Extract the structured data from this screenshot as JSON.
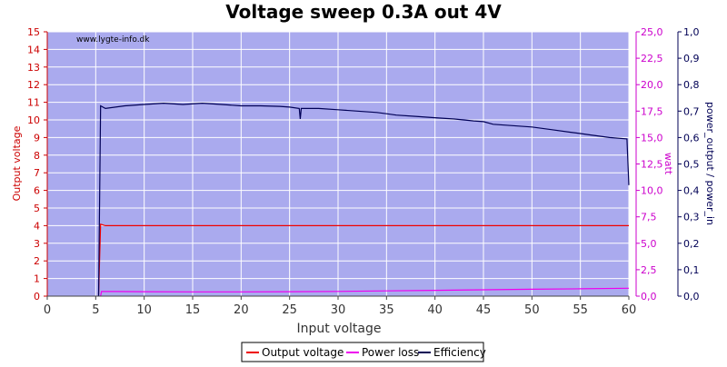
{
  "chart_data": {
    "type": "line",
    "title": "Voltage sweep 0.3A out 4V",
    "watermark": "www.lygte-info.dk",
    "xlabel": "Input voltage",
    "ylabel_left": "Output voltage",
    "ylabel_right1": "watt",
    "ylabel_right2": "power_output / power_in",
    "xlim": [
      0,
      60
    ],
    "ylim_left": [
      0,
      15
    ],
    "ylim_right1": [
      0,
      25
    ],
    "ylim_right2": [
      0,
      1
    ],
    "x_ticks": [
      "0",
      "5",
      "10",
      "15",
      "20",
      "25",
      "30",
      "35",
      "40",
      "45",
      "50",
      "55",
      "60"
    ],
    "y_left_ticks": [
      "0",
      "1",
      "2",
      "3",
      "4",
      "5",
      "6",
      "7",
      "8",
      "9",
      "10",
      "11",
      "12",
      "13",
      "14",
      "15"
    ],
    "y_right1_ticks": [
      "0,0",
      "2,5",
      "5,0",
      "7,5",
      "10,0",
      "12,5",
      "15,0",
      "17,5",
      "20,0",
      "22,5",
      "25,0"
    ],
    "y_right2_ticks": [
      "0,0",
      "0,1",
      "0,2",
      "0,3",
      "0,4",
      "0,5",
      "0,6",
      "0,7",
      "0,8",
      "0,9",
      "1,0"
    ],
    "grid": true,
    "legend_position": "bottom-center",
    "colors": {
      "plot_bg": "#aaaaee",
      "grid": "#ffffff",
      "output_voltage": "#ee0000",
      "power_loss": "#ee00ee",
      "efficiency": "#000055",
      "axis_left": "#cc0000",
      "axis_right1": "#cc00cc",
      "axis_right2": "#000055",
      "axis_bottom": "#444444"
    },
    "series": [
      {
        "name": "Output voltage",
        "axis": "left",
        "points": [
          [
            5.3,
            0.1
          ],
          [
            5.5,
            4.08
          ],
          [
            6,
            4.0
          ],
          [
            10,
            4.0
          ],
          [
            20,
            4.0
          ],
          [
            30,
            4.0
          ],
          [
            40,
            4.0
          ],
          [
            50,
            4.0
          ],
          [
            60,
            4.0
          ]
        ]
      },
      {
        "name": "Power loss",
        "axis": "right1",
        "points": [
          [
            5.5,
            0.0
          ],
          [
            5.6,
            0.45
          ],
          [
            10,
            0.42
          ],
          [
            15,
            0.4
          ],
          [
            20,
            0.4
          ],
          [
            25,
            0.42
          ],
          [
            30,
            0.45
          ],
          [
            35,
            0.5
          ],
          [
            40,
            0.55
          ],
          [
            45,
            0.6
          ],
          [
            50,
            0.65
          ],
          [
            55,
            0.7
          ],
          [
            60,
            0.75
          ]
        ]
      },
      {
        "name": "Efficiency",
        "axis": "right2",
        "points": [
          [
            5.3,
            0.0
          ],
          [
            5.5,
            0.72
          ],
          [
            6,
            0.71
          ],
          [
            8,
            0.72
          ],
          [
            10,
            0.725
          ],
          [
            12,
            0.73
          ],
          [
            14,
            0.725
          ],
          [
            16,
            0.73
          ],
          [
            18,
            0.725
          ],
          [
            20,
            0.72
          ],
          [
            22,
            0.72
          ],
          [
            24,
            0.718
          ],
          [
            25,
            0.715
          ],
          [
            26,
            0.71
          ],
          [
            26.1,
            0.67
          ],
          [
            26.2,
            0.71
          ],
          [
            28,
            0.71
          ],
          [
            30,
            0.705
          ],
          [
            32,
            0.7
          ],
          [
            34,
            0.695
          ],
          [
            35,
            0.69
          ],
          [
            36,
            0.685
          ],
          [
            38,
            0.68
          ],
          [
            40,
            0.675
          ],
          [
            42,
            0.67
          ],
          [
            44,
            0.663
          ],
          [
            45,
            0.66
          ],
          [
            46,
            0.65
          ],
          [
            48,
            0.645
          ],
          [
            50,
            0.64
          ],
          [
            52,
            0.63
          ],
          [
            54,
            0.62
          ],
          [
            55,
            0.615
          ],
          [
            56,
            0.61
          ],
          [
            58,
            0.6
          ],
          [
            59.8,
            0.595
          ],
          [
            60,
            0.42
          ]
        ]
      }
    ]
  }
}
